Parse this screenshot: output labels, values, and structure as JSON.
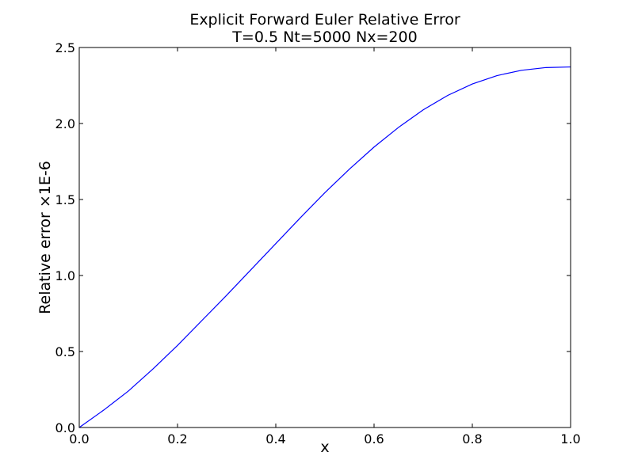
{
  "chart_data": {
    "type": "line",
    "title": "Explicit Forward Euler Relative Error",
    "subtitle": "T=0.5 Nt=5000 Nx=200",
    "xlabel": "x",
    "ylabel": "Relative error ",
    "ylabel_scale": "×1E-6",
    "xlim": [
      0.0,
      1.0
    ],
    "ylim": [
      0.0,
      2.5
    ],
    "xticks": [
      0.0,
      0.2,
      0.4,
      0.6,
      0.8,
      1.0
    ],
    "xtick_labels": [
      "0.0",
      "0.2",
      "0.4",
      "0.6",
      "0.8",
      "1.0"
    ],
    "yticks": [
      0.0,
      0.5,
      1.0,
      1.5,
      2.0,
      2.5
    ],
    "ytick_labels": [
      "0.0",
      "0.5",
      "1.0",
      "1.5",
      "2.0",
      "2.5"
    ],
    "grid": false,
    "line_color": "#0000ff",
    "series": [
      {
        "x": [
          0.0,
          0.05,
          0.1,
          0.15,
          0.2,
          0.25,
          0.3,
          0.35,
          0.4,
          0.45,
          0.5,
          0.55,
          0.6,
          0.65,
          0.7,
          0.75,
          0.8,
          0.85,
          0.9,
          0.95,
          1.0
        ],
        "y": [
          0.0,
          0.115,
          0.24,
          0.385,
          0.54,
          0.705,
          0.87,
          1.04,
          1.21,
          1.38,
          1.545,
          1.7,
          1.845,
          1.975,
          2.09,
          2.185,
          2.26,
          2.315,
          2.35,
          2.368,
          2.372
        ]
      }
    ]
  }
}
